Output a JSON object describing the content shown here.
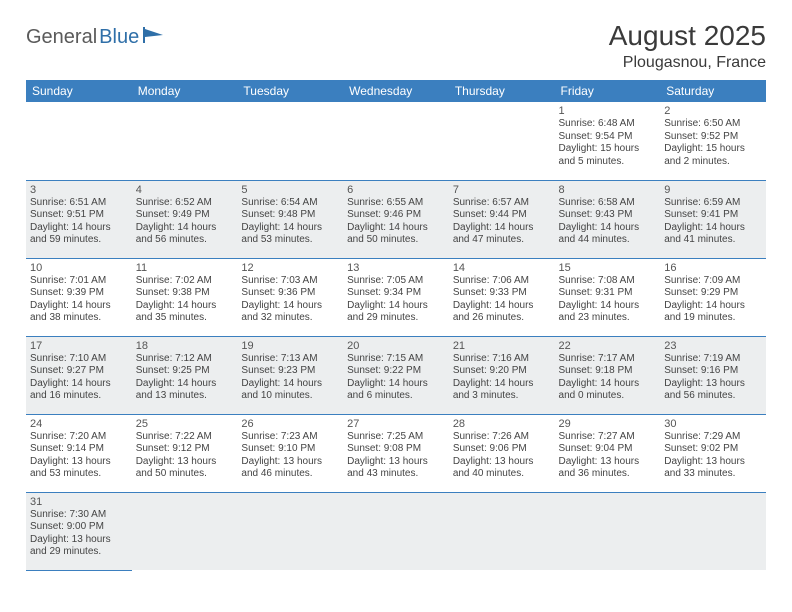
{
  "logo": {
    "part1": "General",
    "part2": "Blue"
  },
  "title": "August 2025",
  "location": "Plougasnou, France",
  "colors": {
    "header_bg": "#3b7fbf",
    "header_text": "#ffffff",
    "alt_row_bg": "#eceeef",
    "border": "#3b7fbf",
    "text": "#444444",
    "logo_gray": "#5a5a5a",
    "logo_blue": "#2f6fa8"
  },
  "day_headers": [
    "Sunday",
    "Monday",
    "Tuesday",
    "Wednesday",
    "Thursday",
    "Friday",
    "Saturday"
  ],
  "weeks": [
    [
      null,
      null,
      null,
      null,
      null,
      {
        "n": "1",
        "sr": "6:48 AM",
        "ss": "9:54 PM",
        "dl": "15 hours and 5 minutes."
      },
      {
        "n": "2",
        "sr": "6:50 AM",
        "ss": "9:52 PM",
        "dl": "15 hours and 2 minutes."
      }
    ],
    [
      {
        "n": "3",
        "sr": "6:51 AM",
        "ss": "9:51 PM",
        "dl": "14 hours and 59 minutes."
      },
      {
        "n": "4",
        "sr": "6:52 AM",
        "ss": "9:49 PM",
        "dl": "14 hours and 56 minutes."
      },
      {
        "n": "5",
        "sr": "6:54 AM",
        "ss": "9:48 PM",
        "dl": "14 hours and 53 minutes."
      },
      {
        "n": "6",
        "sr": "6:55 AM",
        "ss": "9:46 PM",
        "dl": "14 hours and 50 minutes."
      },
      {
        "n": "7",
        "sr": "6:57 AM",
        "ss": "9:44 PM",
        "dl": "14 hours and 47 minutes."
      },
      {
        "n": "8",
        "sr": "6:58 AM",
        "ss": "9:43 PM",
        "dl": "14 hours and 44 minutes."
      },
      {
        "n": "9",
        "sr": "6:59 AM",
        "ss": "9:41 PM",
        "dl": "14 hours and 41 minutes."
      }
    ],
    [
      {
        "n": "10",
        "sr": "7:01 AM",
        "ss": "9:39 PM",
        "dl": "14 hours and 38 minutes."
      },
      {
        "n": "11",
        "sr": "7:02 AM",
        "ss": "9:38 PM",
        "dl": "14 hours and 35 minutes."
      },
      {
        "n": "12",
        "sr": "7:03 AM",
        "ss": "9:36 PM",
        "dl": "14 hours and 32 minutes."
      },
      {
        "n": "13",
        "sr": "7:05 AM",
        "ss": "9:34 PM",
        "dl": "14 hours and 29 minutes."
      },
      {
        "n": "14",
        "sr": "7:06 AM",
        "ss": "9:33 PM",
        "dl": "14 hours and 26 minutes."
      },
      {
        "n": "15",
        "sr": "7:08 AM",
        "ss": "9:31 PM",
        "dl": "14 hours and 23 minutes."
      },
      {
        "n": "16",
        "sr": "7:09 AM",
        "ss": "9:29 PM",
        "dl": "14 hours and 19 minutes."
      }
    ],
    [
      {
        "n": "17",
        "sr": "7:10 AM",
        "ss": "9:27 PM",
        "dl": "14 hours and 16 minutes."
      },
      {
        "n": "18",
        "sr": "7:12 AM",
        "ss": "9:25 PM",
        "dl": "14 hours and 13 minutes."
      },
      {
        "n": "19",
        "sr": "7:13 AM",
        "ss": "9:23 PM",
        "dl": "14 hours and 10 minutes."
      },
      {
        "n": "20",
        "sr": "7:15 AM",
        "ss": "9:22 PM",
        "dl": "14 hours and 6 minutes."
      },
      {
        "n": "21",
        "sr": "7:16 AM",
        "ss": "9:20 PM",
        "dl": "14 hours and 3 minutes."
      },
      {
        "n": "22",
        "sr": "7:17 AM",
        "ss": "9:18 PM",
        "dl": "14 hours and 0 minutes."
      },
      {
        "n": "23",
        "sr": "7:19 AM",
        "ss": "9:16 PM",
        "dl": "13 hours and 56 minutes."
      }
    ],
    [
      {
        "n": "24",
        "sr": "7:20 AM",
        "ss": "9:14 PM",
        "dl": "13 hours and 53 minutes."
      },
      {
        "n": "25",
        "sr": "7:22 AM",
        "ss": "9:12 PM",
        "dl": "13 hours and 50 minutes."
      },
      {
        "n": "26",
        "sr": "7:23 AM",
        "ss": "9:10 PM",
        "dl": "13 hours and 46 minutes."
      },
      {
        "n": "27",
        "sr": "7:25 AM",
        "ss": "9:08 PM",
        "dl": "13 hours and 43 minutes."
      },
      {
        "n": "28",
        "sr": "7:26 AM",
        "ss": "9:06 PM",
        "dl": "13 hours and 40 minutes."
      },
      {
        "n": "29",
        "sr": "7:27 AM",
        "ss": "9:04 PM",
        "dl": "13 hours and 36 minutes."
      },
      {
        "n": "30",
        "sr": "7:29 AM",
        "ss": "9:02 PM",
        "dl": "13 hours and 33 minutes."
      }
    ],
    [
      {
        "n": "31",
        "sr": "7:30 AM",
        "ss": "9:00 PM",
        "dl": "13 hours and 29 minutes."
      },
      null,
      null,
      null,
      null,
      null,
      null
    ]
  ],
  "labels": {
    "sunrise": "Sunrise:",
    "sunset": "Sunset:",
    "daylight": "Daylight:"
  }
}
